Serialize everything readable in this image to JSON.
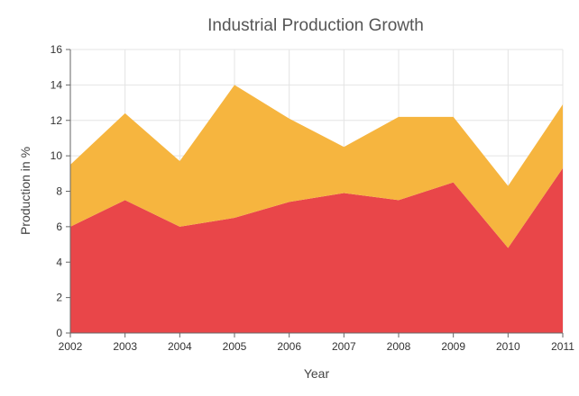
{
  "chart_data": {
    "type": "area",
    "stacked": true,
    "title": "Industrial Production Growth",
    "xlabel": "Year",
    "ylabel": "Production in %",
    "x": [
      "2002",
      "2003",
      "2004",
      "2005",
      "2006",
      "2007",
      "2008",
      "2009",
      "2010",
      "2011"
    ],
    "ylim": [
      0,
      16
    ],
    "yticks": [
      0,
      2,
      4,
      6,
      8,
      10,
      12,
      14,
      16
    ],
    "grid": true,
    "legend": "none",
    "series": [
      {
        "color": "#e94649",
        "values": [
          6.0,
          7.5,
          6.0,
          6.5,
          7.4,
          7.9,
          7.5,
          8.5,
          4.8,
          9.3
        ]
      },
      {
        "color": "#f6b53f",
        "values": [
          3.5,
          4.9,
          3.7,
          7.5,
          4.7,
          2.6,
          4.7,
          3.7,
          3.5,
          3.6
        ]
      }
    ]
  }
}
